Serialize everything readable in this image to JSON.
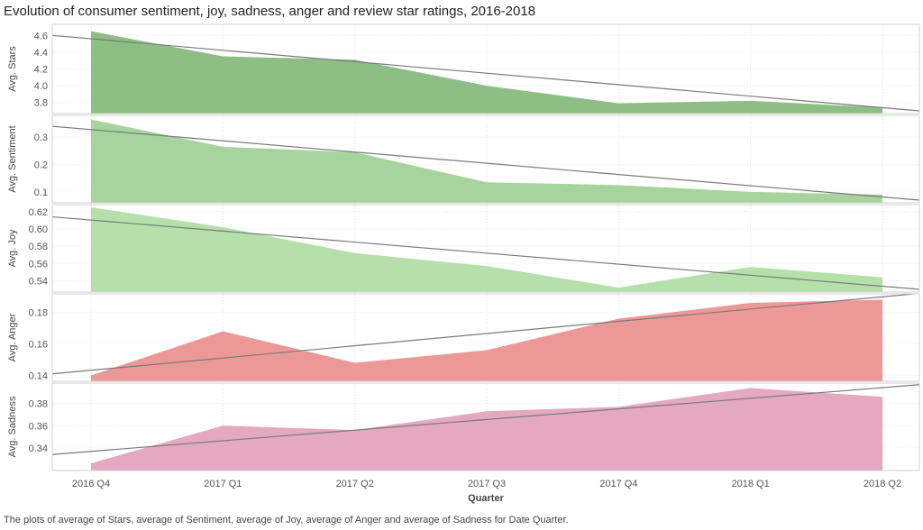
{
  "title": "Evolution of consumer sentiment, joy, sadness, anger and review star ratings, 2016-2018",
  "caption": "The plots of average of Stars, average of Sentiment, average of Joy, average of Anger and average of Sadness for Date Quarter.",
  "chart_data": {
    "type": "area",
    "categories": [
      "2016 Q4",
      "2017 Q1",
      "2017 Q2",
      "2017 Q3",
      "2017 Q4",
      "2018 Q1",
      "2018 Q2"
    ],
    "xlabel": "Quarter",
    "grid": true,
    "trend_lines": true,
    "panels": [
      {
        "ylabel": "Avg. Stars",
        "color": "#8dbf84",
        "values": [
          4.65,
          4.35,
          4.31,
          4.0,
          3.79,
          3.82,
          3.74
        ],
        "ylim": [
          3.7,
          4.7
        ],
        "ticks": [
          3.8,
          4.0,
          4.2,
          4.4,
          4.6
        ],
        "tick_labels": [
          "3.8",
          "4.0",
          "4.2",
          "4.4",
          "4.6"
        ],
        "trend": [
          4.6,
          3.7
        ]
      },
      {
        "ylabel": "Avg. Sentiment",
        "color": "#a7d49c",
        "values": [
          0.365,
          0.265,
          0.245,
          0.135,
          0.125,
          0.1,
          0.09
        ],
        "ylim": [
          0.07,
          0.37
        ],
        "ticks": [
          0.1,
          0.2,
          0.3
        ],
        "tick_labels": [
          "0.1",
          "0.2",
          "0.3"
        ],
        "trend": [
          0.34,
          0.07
        ]
      },
      {
        "ylabel": "Avg. Joy",
        "color": "#b6e0aa",
        "values": [
          0.625,
          0.602,
          0.572,
          0.557,
          0.532,
          0.556,
          0.544
        ],
        "ylim": [
          0.53,
          0.625
        ],
        "ticks": [
          0.54,
          0.56,
          0.58,
          0.6,
          0.62
        ],
        "tick_labels": [
          "0.54",
          "0.56",
          "0.58",
          "0.60",
          "0.62"
        ],
        "trend": [
          0.614,
          0.53
        ]
      },
      {
        "ylabel": "Avg. Anger",
        "color": "#ec9896",
        "values": [
          0.14,
          0.168,
          0.148,
          0.156,
          0.176,
          0.186,
          0.188
        ],
        "ylim": [
          0.138,
          0.19
        ],
        "ticks": [
          0.14,
          0.16,
          0.18
        ],
        "tick_labels": [
          "0.14",
          "0.16",
          "0.18"
        ],
        "trend": [
          0.141,
          0.192
        ]
      },
      {
        "ylabel": "Avg. Sadness",
        "color": "#e4a8c0",
        "values": [
          0.326,
          0.36,
          0.356,
          0.373,
          0.377,
          0.394,
          0.386
        ],
        "ylim": [
          0.322,
          0.396
        ],
        "ticks": [
          0.34,
          0.36,
          0.38
        ],
        "tick_labels": [
          "0.34",
          "0.36",
          "0.38"
        ],
        "trend": [
          0.334,
          0.397
        ]
      }
    ]
  }
}
